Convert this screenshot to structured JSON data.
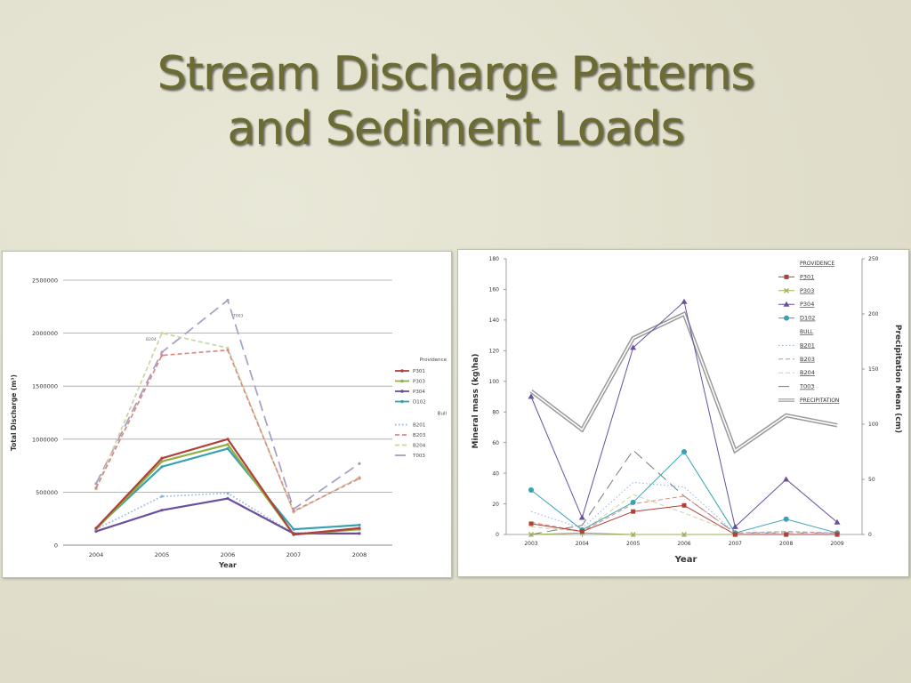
{
  "slide": {
    "title_line1": "Stream Discharge Patterns",
    "title_line2": "and Sediment Loads"
  },
  "chart_data": [
    {
      "type": "line",
      "title": "",
      "xlabel": "Year",
      "ylabel": "Total Discharge (m³)",
      "categories": [
        "2004",
        "2005",
        "2006",
        "2007",
        "2008"
      ],
      "ylim": [
        0,
        2500000
      ],
      "yticks": [
        "0",
        "500000",
        "1000000",
        "1500000",
        "2000000",
        "2500000"
      ],
      "grid": true,
      "legend_position": "right",
      "legend_groups": [
        "Providence",
        "Bull"
      ],
      "series": [
        {
          "name": "P301",
          "group": "Providence",
          "color": "#b0403a",
          "dash": "solid",
          "values": [
            160000,
            820000,
            1000000,
            100000,
            160000
          ]
        },
        {
          "name": "P303",
          "group": "Providence",
          "color": "#8fb043",
          "dash": "solid",
          "values": [
            150000,
            790000,
            950000,
            100000,
            150000
          ]
        },
        {
          "name": "P304",
          "group": "Providence",
          "color": "#6a4fa0",
          "dash": "solid",
          "values": [
            130000,
            330000,
            440000,
            110000,
            110000
          ]
        },
        {
          "name": "D102",
          "group": "Providence",
          "color": "#3aa0b4",
          "dash": "solid",
          "values": [
            160000,
            740000,
            910000,
            150000,
            190000
          ]
        },
        {
          "name": "B201",
          "group": "Bull",
          "color": "#8fb4de",
          "dash": "dot",
          "values": [
            150000,
            460000,
            490000,
            110000,
            150000
          ]
        },
        {
          "name": "B203",
          "group": "Bull",
          "color": "#d88a82",
          "dash": "dash",
          "values": [
            540000,
            1790000,
            1840000,
            320000,
            630000
          ]
        },
        {
          "name": "B204",
          "group": "Bull",
          "color": "#c8d6a2",
          "dash": "dash",
          "values": [
            530000,
            2000000,
            1860000,
            310000,
            640000
          ]
        },
        {
          "name": "T003",
          "group": "Bull",
          "color": "#a89ec4",
          "dash": "longdash",
          "values": [
            580000,
            1820000,
            2310000,
            340000,
            770000
          ]
        }
      ],
      "annotations": [
        {
          "text": "B204",
          "x": "2005",
          "y": 1930000
        },
        {
          "text": "T003",
          "x": "2006",
          "y": 2150000
        }
      ]
    },
    {
      "type": "line",
      "title": "",
      "xlabel": "Year",
      "ylabel": "Mineral  mass  (kg\\ha)",
      "y2label": "Precipitation Mean (cm)",
      "categories": [
        "2003",
        "2004",
        "2005",
        "2006",
        "2007",
        "2008",
        "2009"
      ],
      "ylim": [
        0,
        180
      ],
      "yticks": [
        "0",
        "20",
        "40",
        "60",
        "80",
        "100",
        "120",
        "140",
        "160",
        "180"
      ],
      "y2lim": [
        0,
        250
      ],
      "y2ticks": [
        "0",
        "50",
        "100",
        "150",
        "200",
        "250"
      ],
      "grid": false,
      "legend_position": "top-right",
      "legend_groups": [
        "Providence",
        "Bull"
      ],
      "series": [
        {
          "name": "P301",
          "group": "Providence",
          "axis": "left",
          "color": "#b0403a",
          "dash": "solid",
          "marker": "square",
          "values": [
            7,
            2,
            15,
            19,
            0,
            0,
            0
          ]
        },
        {
          "name": "P303",
          "group": "Providence",
          "axis": "left",
          "color": "#9ab055",
          "dash": "solid",
          "marker": "x",
          "values": [
            0,
            1,
            0,
            0,
            0,
            0,
            0
          ]
        },
        {
          "name": "P304",
          "group": "Providence",
          "axis": "left",
          "color": "#6a4fa0",
          "dash": "solid",
          "marker": "triangle",
          "values": [
            90,
            11,
            122,
            152,
            5,
            36,
            8
          ]
        },
        {
          "name": "D102",
          "group": "Providence",
          "axis": "left",
          "color": "#3aa0b4",
          "dash": "solid",
          "marker": "circle",
          "values": [
            29,
            3,
            21,
            54,
            1,
            10,
            1
          ]
        },
        {
          "name": "B201",
          "group": "Bull",
          "axis": "left",
          "color": "#8fb4de",
          "dash": "dot",
          "marker": "none",
          "values": [
            15,
            4,
            34,
            31,
            1,
            2,
            1
          ]
        },
        {
          "name": "B203",
          "group": "Bull",
          "axis": "left",
          "color": "#d88a82",
          "dash": "dash",
          "marker": "none",
          "values": [
            8,
            2,
            20,
            25,
            1,
            2,
            1
          ]
        },
        {
          "name": "B204",
          "group": "Bull",
          "axis": "left",
          "color": "#c8d6a2",
          "dash": "dash",
          "marker": "none",
          "values": [
            5,
            2,
            26,
            14,
            1,
            1,
            1
          ]
        },
        {
          "name": "T003",
          "group": "Bull",
          "axis": "left",
          "color": "#7a7a7a",
          "dash": "longdash",
          "marker": "none",
          "values": [
            0,
            6,
            55,
            25,
            1,
            1,
            1
          ]
        },
        {
          "name": "Precipitation",
          "group": "",
          "axis": "right",
          "color": "#9a9a9a",
          "dash": "double",
          "marker": "none",
          "values": [
            130,
            95,
            178,
            200,
            76,
            108,
            99
          ]
        }
      ]
    }
  ]
}
